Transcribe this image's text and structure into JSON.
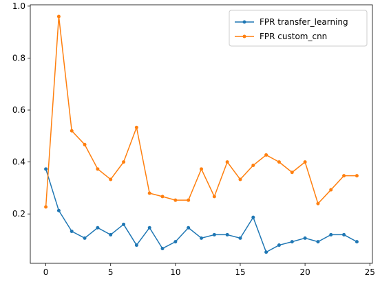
{
  "chart_data": {
    "type": "line",
    "title": "",
    "xlabel": "",
    "ylabel": "",
    "xlim": [
      -1.2,
      25.2
    ],
    "ylim": [
      0.01,
      1.005
    ],
    "xticks": [
      0,
      5,
      10,
      15,
      20,
      25
    ],
    "yticks": [
      0.2,
      0.4,
      0.6,
      0.8,
      1.0
    ],
    "xtick_labels": [
      "0",
      "5",
      "10",
      "15",
      "20",
      "25"
    ],
    "ytick_labels": [
      "0.2",
      "0.4",
      "0.6",
      "0.8",
      "1.0"
    ],
    "grid": false,
    "legend_position": "top-right",
    "x": [
      0,
      1,
      2,
      3,
      4,
      5,
      6,
      7,
      8,
      9,
      10,
      11,
      12,
      13,
      14,
      15,
      16,
      17,
      18,
      19,
      20,
      21,
      22,
      23,
      24
    ],
    "series": [
      {
        "name": "FPR transfer_learning",
        "color": "#1f77b4",
        "values": [
          0.373,
          0.213,
          0.133,
          0.107,
          0.147,
          0.12,
          0.16,
          0.08,
          0.147,
          0.067,
          0.093,
          0.147,
          0.107,
          0.12,
          0.12,
          0.107,
          0.187,
          0.053,
          0.08,
          0.093,
          0.107,
          0.093,
          0.12,
          0.12,
          0.093
        ]
      },
      {
        "name": "FPR custom_cnn",
        "color": "#ff7f0e",
        "values": [
          0.227,
          0.96,
          0.52,
          0.467,
          0.373,
          0.333,
          0.4,
          0.533,
          0.28,
          0.267,
          0.253,
          0.253,
          0.373,
          0.267,
          0.4,
          0.333,
          0.387,
          0.427,
          0.4,
          0.36,
          0.4,
          0.24,
          0.293,
          0.347,
          0.347
        ]
      }
    ]
  }
}
